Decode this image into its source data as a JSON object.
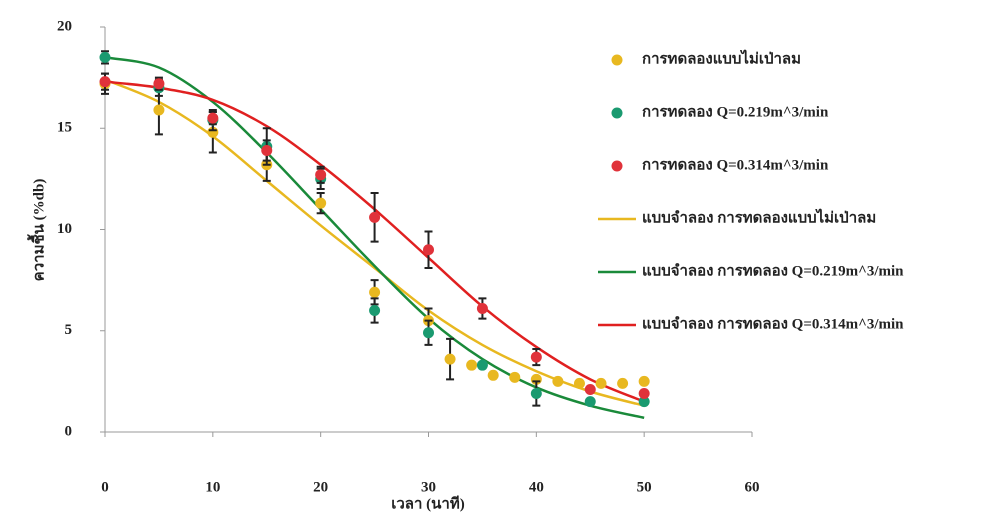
{
  "chart_data": {
    "type": "scatter",
    "x_label": "เวลา (นาที)",
    "y_label": "ความชื้น (%db)",
    "xlim": [
      0,
      60
    ],
    "xticks": [
      0,
      10,
      20,
      30,
      40,
      50,
      60
    ],
    "ylim": [
      0,
      20
    ],
    "yticks": [
      0,
      5,
      10,
      15,
      20
    ],
    "grid": false,
    "legend": "right",
    "series": [
      {
        "name": "การทดลองแบบไม่เป่าลม",
        "kind": "points",
        "color": "#e8b820",
        "x": [
          0,
          5,
          10,
          15,
          20,
          25,
          30,
          32,
          34,
          36,
          38,
          40,
          42,
          44,
          46,
          48,
          50
        ],
        "values": [
          17.2,
          15.9,
          14.8,
          13.2,
          11.3,
          6.9,
          5.5,
          3.6,
          3.3,
          2.8,
          2.7,
          2.6,
          2.5,
          2.4,
          2.4,
          2.4,
          2.5
        ],
        "errors": [
          0.5,
          1.2,
          1.0,
          0.8,
          0.5,
          0.6,
          0.6,
          1.0,
          null,
          null,
          null,
          null,
          null,
          null,
          null,
          null,
          null
        ]
      },
      {
        "name": "การทดลอง Q=0.219m^3/min",
        "kind": "points",
        "color": "#1a9a70",
        "x": [
          0,
          5,
          10,
          15,
          20,
          25,
          30,
          35,
          40,
          45,
          50
        ],
        "values": [
          18.5,
          17.0,
          15.4,
          14.1,
          12.5,
          6.0,
          4.9,
          3.3,
          1.9,
          1.5,
          1.5
        ],
        "errors": [
          0.3,
          0.4,
          0.5,
          0.9,
          0.5,
          0.6,
          0.6,
          null,
          0.6,
          null,
          null
        ]
      },
      {
        "name": "การทดลอง Q=0.314m^3/min",
        "kind": "points",
        "color": "#e0323a",
        "x": [
          0,
          5,
          10,
          15,
          20,
          25,
          30,
          35,
          40,
          45,
          50
        ],
        "values": [
          17.3,
          17.2,
          15.5,
          13.9,
          12.7,
          10.6,
          9.0,
          6.1,
          3.7,
          2.1,
          1.9
        ],
        "errors": [
          0.4,
          0.3,
          0.3,
          0.5,
          0.4,
          1.2,
          0.9,
          0.5,
          0.4,
          null,
          null
        ]
      },
      {
        "name": "แบบจำลอง การทดลองแบบไม่เป่าลม",
        "kind": "line",
        "color": "#e8b820",
        "x": [
          0,
          5,
          10,
          15,
          20,
          25,
          30,
          35,
          40,
          45,
          50
        ],
        "values": [
          17.4,
          16.3,
          14.6,
          12.4,
          10.2,
          8.1,
          6.0,
          4.3,
          3.0,
          2.0,
          1.3
        ]
      },
      {
        "name": "แบบจำลอง การทดลอง Q=0.219m^3/min",
        "kind": "line",
        "color": "#1a8a3a",
        "x": [
          0,
          5,
          10,
          15,
          20,
          25,
          30,
          35,
          40,
          45,
          50
        ],
        "values": [
          18.5,
          18.0,
          16.3,
          13.8,
          11.0,
          8.2,
          5.6,
          3.6,
          2.2,
          1.3,
          0.7
        ]
      },
      {
        "name": "แบบจำลอง การทดลอง Q=0.314m^3/min",
        "kind": "line",
        "color": "#e02020",
        "x": [
          0,
          5,
          10,
          15,
          20,
          25,
          30,
          35,
          40,
          45,
          50
        ],
        "values": [
          17.3,
          17.0,
          16.4,
          15.1,
          13.2,
          11.0,
          8.6,
          6.2,
          4.2,
          2.6,
          1.5
        ]
      }
    ]
  }
}
